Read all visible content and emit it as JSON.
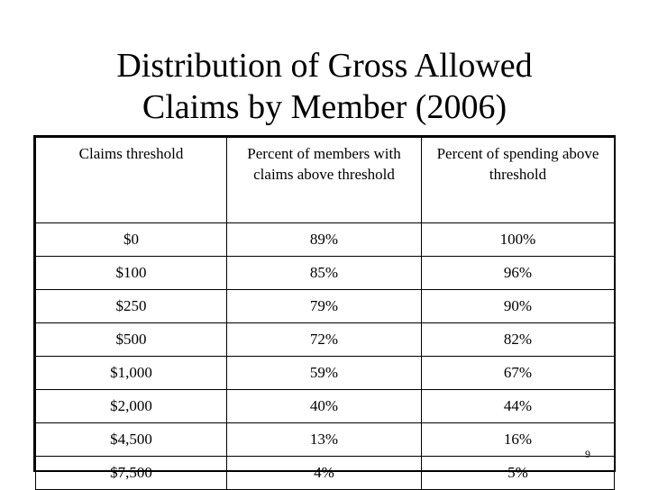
{
  "slide": {
    "title_line1": "Distribution of Gross Allowed",
    "title_line2": "Claims by Member (2006)",
    "page_number": "9"
  },
  "table": {
    "headers": [
      "Claims threshold",
      "Percent of members with claims above threshold",
      "Percent of spending above threshold"
    ],
    "rows": [
      [
        "$0",
        "89%",
        "100%"
      ],
      [
        "$100",
        "85%",
        "96%"
      ],
      [
        "$250",
        "79%",
        "90%"
      ],
      [
        "$500",
        "72%",
        "82%"
      ],
      [
        "$1,000",
        "59%",
        "67%"
      ],
      [
        "$2,000",
        "40%",
        "44%"
      ],
      [
        "$4,500",
        "13%",
        "16%"
      ],
      [
        "$7,500",
        "4%",
        "5%"
      ]
    ]
  }
}
